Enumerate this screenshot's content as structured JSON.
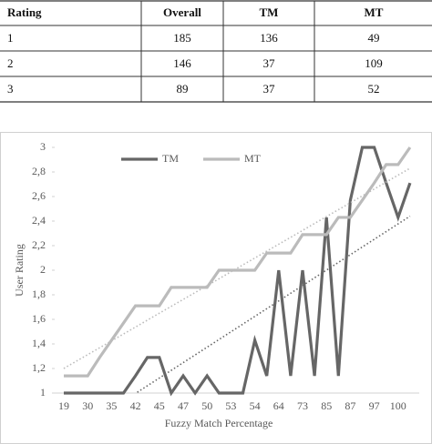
{
  "table": {
    "header": [
      "Rating",
      "Overall",
      "TM",
      "MT"
    ],
    "rows": [
      [
        1,
        185,
        136,
        49
      ],
      [
        2,
        146,
        37,
        109
      ],
      [
        3,
        89,
        37,
        52
      ]
    ]
  },
  "chart_data": {
    "type": "line",
    "x_label": "Fuzzy Match Percentage",
    "y_label": "User Rating",
    "categories": [
      "19",
      null,
      "30",
      null,
      "35",
      null,
      "42",
      null,
      "45",
      null,
      "47",
      null,
      "50",
      null,
      "53",
      null,
      "54",
      null,
      "64",
      null,
      "73",
      null,
      "85",
      null,
      "87",
      null,
      "97",
      null,
      "100",
      null
    ],
    "series": [
      {
        "name": "TM",
        "color": "#666666",
        "trend": [
          0.62,
          2.44
        ],
        "values": [
          1,
          1,
          1,
          1,
          1,
          1,
          1.14,
          1.29,
          1.29,
          1,
          1.14,
          1,
          1.14,
          1,
          1,
          1,
          1.43,
          1.14,
          2,
          1.14,
          2,
          1.14,
          2.43,
          1.14,
          2.57,
          3,
          3,
          2.71,
          2.43,
          2.71
        ]
      },
      {
        "name": "MT",
        "color": "#bbbbbb",
        "trend": [
          1.2,
          2.83
        ],
        "values": [
          1.14,
          1.14,
          1.14,
          1.29,
          1.43,
          1.57,
          1.71,
          1.71,
          1.71,
          1.86,
          1.86,
          1.86,
          1.86,
          2,
          2,
          2,
          2,
          2.14,
          2.14,
          2.14,
          2.29,
          2.29,
          2.29,
          2.43,
          2.43,
          2.57,
          2.71,
          2.86,
          2.86,
          3
        ]
      }
    ],
    "ylim": [
      1,
      3
    ],
    "yticks": [
      1,
      {
        "value": 1.2,
        "label": "1,2"
      },
      {
        "value": 1.4,
        "label": "1,4"
      },
      {
        "value": 1.6,
        "label": "1,6"
      },
      {
        "value": 1.8,
        "label": "1,8"
      },
      2,
      {
        "value": 2.2,
        "label": "2,2"
      },
      {
        "value": 2.4,
        "label": "2,4"
      },
      {
        "value": 2.6,
        "label": "2,6"
      },
      {
        "value": 2.8,
        "label": "2,8"
      },
      3
    ],
    "legend": "top-left"
  }
}
